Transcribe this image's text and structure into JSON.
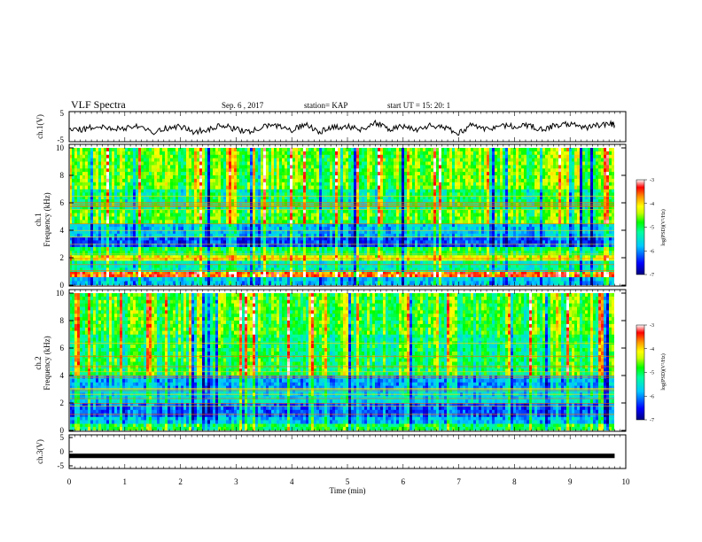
{
  "header": {
    "title": "VLF Spectra",
    "date": "Sep. 6 , 2017",
    "station": "station= KAP",
    "start": "start UT =   15: 20: 1"
  },
  "colors": {
    "spectrum_scale": [
      "#00007f",
      "#0000ff",
      "#00c8ff",
      "#00ff9c",
      "#00ff00",
      "#c8ff00",
      "#ffff00",
      "#ff9600",
      "#ff0000",
      "#ffffff"
    ],
    "axis": "#000000"
  },
  "chart_data": [
    {
      "type": "line",
      "id": "ch1-waveform",
      "ylabel": "ch.1(V)",
      "ylim": [
        -5,
        5
      ],
      "yticks": [
        "5",
        "-5"
      ],
      "xlim": [
        0,
        10
      ],
      "x": [
        0,
        0.25,
        0.5,
        0.75,
        1,
        1.25,
        1.5,
        1.75,
        2,
        2.25,
        2.5,
        2.75,
        3,
        3.25,
        3.5,
        3.75,
        4,
        4.25,
        4.5,
        4.75,
        5,
        5.25,
        5.5,
        5.75,
        6,
        6.25,
        6.5,
        6.75,
        7,
        7.25,
        7.5,
        7.75,
        8,
        8.25,
        8.5,
        8.75,
        9,
        9.25,
        9.5,
        9.75,
        9.8
      ],
      "y": [
        -1,
        -1,
        0,
        -0.5,
        -0.5,
        0.5,
        -2,
        -0.5,
        0,
        -2,
        -1,
        0.5,
        -1,
        -2,
        0,
        0.5,
        -1.5,
        1,
        -2,
        0,
        0,
        -1,
        1.5,
        -1,
        0,
        -1,
        0.5,
        -0.5,
        -2.5,
        1,
        -1,
        0.5,
        0,
        0.5,
        -1,
        0.5,
        1,
        -0.5,
        0.5,
        1,
        0.5
      ]
    },
    {
      "type": "heatmap",
      "id": "ch1-spectrogram",
      "ylabel": "Frequency (kHz)",
      "channel_label": "ch.1",
      "xlim": [
        0,
        9.8
      ],
      "ylim": [
        0,
        10
      ],
      "yticks": [
        "0",
        "2",
        "4",
        "6",
        "8",
        "10"
      ],
      "colorbar": {
        "label": "log(PSD)(V²/Hz)",
        "range": [
          -7,
          -3
        ],
        "ticks": [
          "-3",
          "-4",
          "-5",
          "-6",
          "-7"
        ]
      },
      "bands_khz": [
        {
          "from": 0.0,
          "to": 0.6,
          "level": -5.8
        },
        {
          "from": 0.6,
          "to": 1.0,
          "level": -3.6
        },
        {
          "from": 1.0,
          "to": 1.8,
          "level": -5.4
        },
        {
          "from": 1.8,
          "to": 2.2,
          "level": -4.2
        },
        {
          "from": 2.2,
          "to": 2.8,
          "level": -5.0
        },
        {
          "from": 2.8,
          "to": 3.5,
          "level": -6.3
        },
        {
          "from": 3.5,
          "to": 4.5,
          "level": -5.8
        },
        {
          "from": 4.5,
          "to": 5.5,
          "level": -4.8
        },
        {
          "from": 5.5,
          "to": 7.0,
          "level": -5.2
        },
        {
          "from": 7.0,
          "to": 10.0,
          "level": -4.7
        }
      ]
    },
    {
      "type": "heatmap",
      "id": "ch2-spectrogram",
      "ylabel": "Frequency (kHz)",
      "channel_label": "ch.2",
      "xlim": [
        0,
        9.8
      ],
      "ylim": [
        0,
        10
      ],
      "yticks": [
        "0",
        "2",
        "4",
        "6",
        "8",
        "10"
      ],
      "colorbar": {
        "label": "log(PSD)(V²/Hz)",
        "range": [
          -7,
          -3
        ],
        "ticks": [
          "-3",
          "-4",
          "-5",
          "-6",
          "-7"
        ]
      },
      "bands_khz": [
        {
          "from": 0.0,
          "to": 0.5,
          "level": -5.0
        },
        {
          "from": 0.5,
          "to": 1.0,
          "level": -5.8
        },
        {
          "from": 1.0,
          "to": 2.0,
          "level": -6.2
        },
        {
          "from": 2.0,
          "to": 3.0,
          "level": -5.6
        },
        {
          "from": 3.0,
          "to": 4.0,
          "level": -5.9
        },
        {
          "from": 4.0,
          "to": 5.5,
          "level": -5.0
        },
        {
          "from": 5.5,
          "to": 7.0,
          "level": -5.1
        },
        {
          "from": 7.0,
          "to": 10.0,
          "level": -4.8
        }
      ]
    },
    {
      "type": "line",
      "id": "ch3-waveform",
      "ylabel": "ch.3(V)",
      "ylim": [
        -5,
        5
      ],
      "yticks": [
        "5",
        "0",
        "-5"
      ],
      "xlim": [
        0,
        10
      ],
      "x": [
        0,
        9.8
      ],
      "y": [
        -1.5,
        -1.5
      ]
    }
  ],
  "x_axis": {
    "label": "Time (min)",
    "ticks": [
      "0",
      "1",
      "2",
      "3",
      "4",
      "5",
      "6",
      "7",
      "8",
      "9",
      "10"
    ]
  }
}
